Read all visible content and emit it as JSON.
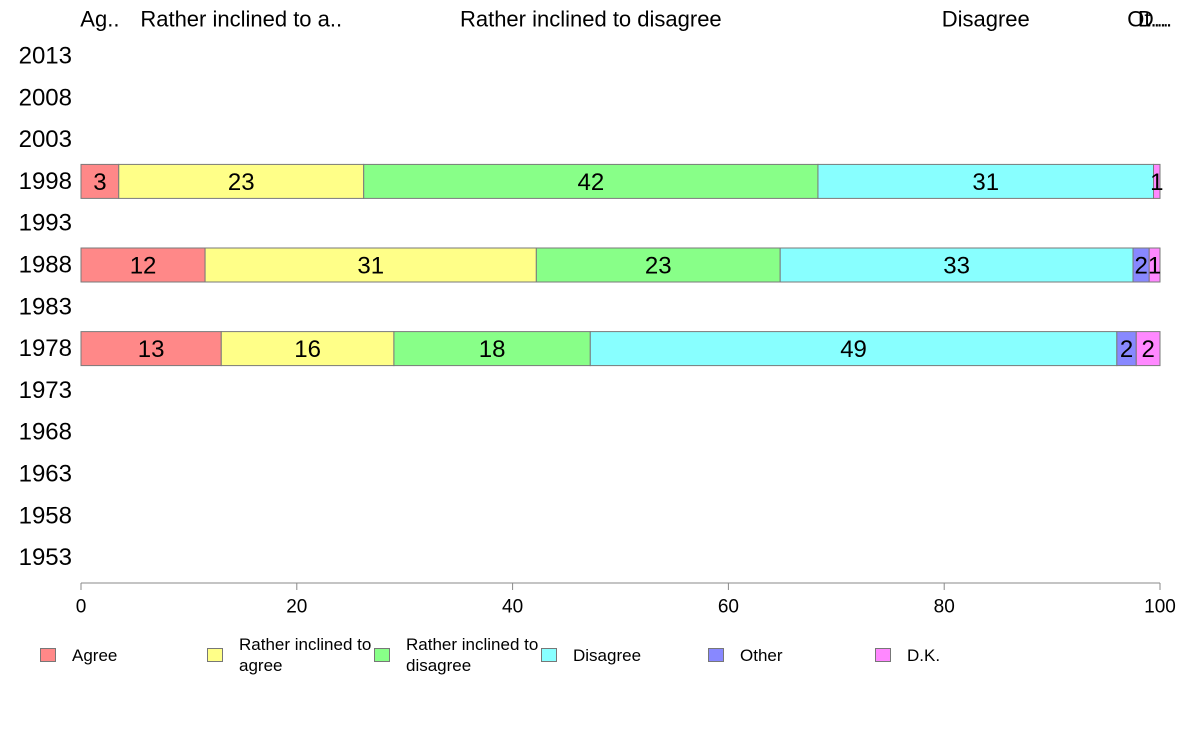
{
  "chart_data": {
    "type": "bar",
    "orientation": "horizontal",
    "stacked": true,
    "categories": [
      "2013",
      "2008",
      "2003",
      "1998",
      "1993",
      "1988",
      "1983",
      "1978",
      "1973",
      "1968",
      "1963",
      "1958",
      "1953"
    ],
    "header_labels": [
      "Ag..",
      "Rather inclined to a..",
      "Rather inclined to disagree",
      "Disagree",
      "Ot...",
      "D..."
    ],
    "series": [
      {
        "name": "Agree",
        "color": "#ff8888",
        "values": [
          null,
          null,
          null,
          3.5,
          null,
          11.5,
          null,
          13,
          null,
          null,
          null,
          null,
          null
        ],
        "labels": [
          "",
          "",
          "",
          "3",
          "",
          "12",
          "",
          "13",
          "",
          "",
          "",
          "",
          ""
        ]
      },
      {
        "name": "Rather inclined to agree",
        "color": "#ffff88",
        "values": [
          null,
          null,
          null,
          22.7,
          null,
          30.7,
          null,
          16,
          null,
          null,
          null,
          null,
          null
        ],
        "labels": [
          "",
          "",
          "",
          "23",
          "",
          "31",
          "",
          "16",
          "",
          "",
          "",
          "",
          ""
        ]
      },
      {
        "name": "Rather inclined to disagree",
        "color": "#88ff88",
        "values": [
          null,
          null,
          null,
          42.1,
          null,
          22.6,
          null,
          18.2,
          null,
          null,
          null,
          null,
          null
        ],
        "labels": [
          "",
          "",
          "",
          "42",
          "",
          "23",
          "",
          "18",
          "",
          "",
          "",
          "",
          ""
        ]
      },
      {
        "name": "Disagree",
        "color": "#88ffff",
        "values": [
          null,
          null,
          null,
          31.1,
          null,
          32.7,
          null,
          48.8,
          null,
          null,
          null,
          null,
          null
        ],
        "labels": [
          "",
          "",
          "",
          "31",
          "",
          "33",
          "",
          "49",
          "",
          "",
          "",
          "",
          ""
        ]
      },
      {
        "name": "Other",
        "color": "#8888ff",
        "values": [
          null,
          null,
          null,
          0,
          null,
          1.5,
          null,
          1.8,
          null,
          null,
          null,
          null,
          null
        ],
        "labels": [
          "",
          "",
          "",
          "",
          "",
          "2",
          "",
          "2",
          "",
          "",
          "",
          "",
          ""
        ]
      },
      {
        "name": "D.K.",
        "color": "#ff88ff",
        "values": [
          null,
          null,
          null,
          0.6,
          null,
          1,
          null,
          2.2,
          null,
          null,
          null,
          null,
          null
        ],
        "labels": [
          "",
          "",
          "",
          "1",
          "",
          "1",
          "",
          "2",
          "",
          "",
          "",
          "",
          ""
        ]
      }
    ],
    "xlim": [
      0,
      100
    ],
    "xticks": [
      0,
      20,
      40,
      60,
      80,
      100
    ],
    "grid": false,
    "legend_placement": "bottom",
    "legend_labels": [
      "Agree",
      "Rather inclined to agree",
      "Rather inclined to disagree",
      "Disagree",
      "Other",
      "D.K."
    ]
  }
}
